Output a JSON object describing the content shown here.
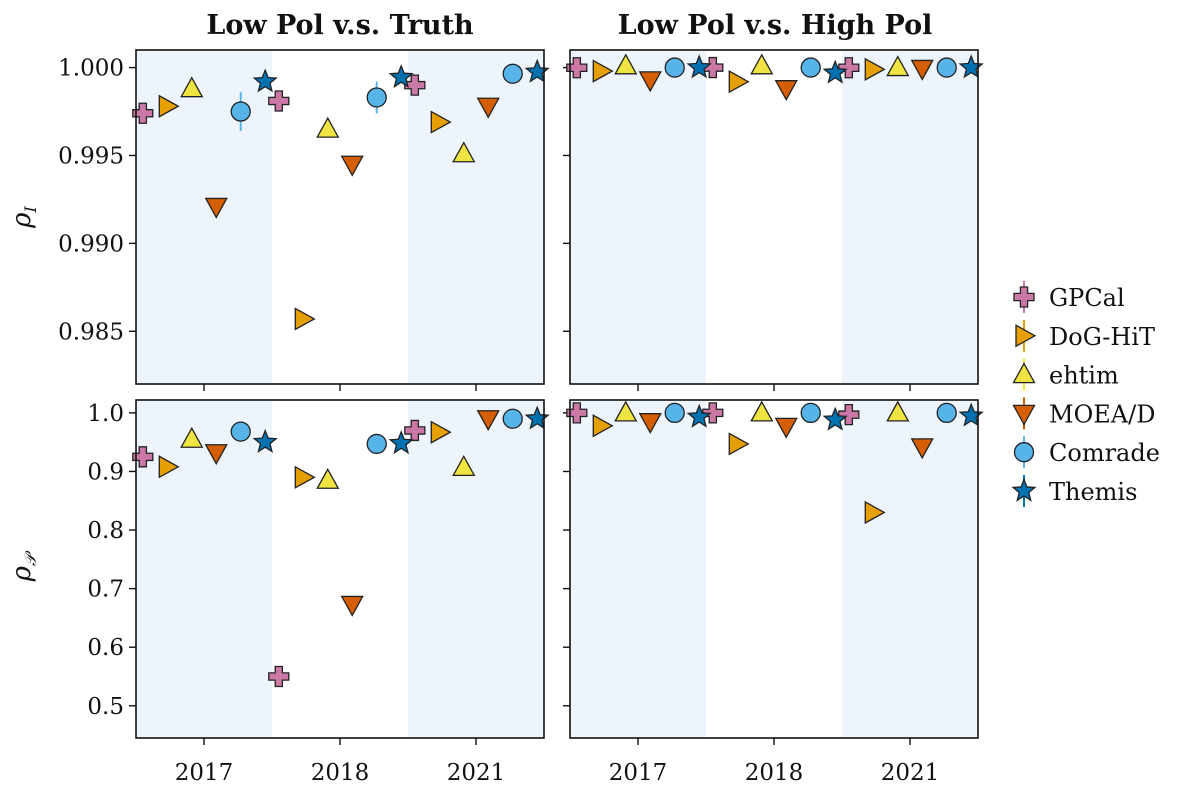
{
  "chart_data": {
    "type": "scatter",
    "layout": "2x2 panel grid",
    "columns": [
      {
        "title": "Low Pol v.s. Truth"
      },
      {
        "title": "Low Pol v.s. High Pol"
      }
    ],
    "rows": [
      {
        "ylabel": "ρ",
        "ylabel_sub": "I",
        "ylim": [
          0.982,
          1.001
        ],
        "yticks": [
          1.0,
          0.995,
          0.99,
          0.985
        ],
        "ytick_labels": [
          "1.000",
          "0.995",
          "0.990",
          "0.985"
        ]
      },
      {
        "ylabel": "ρ",
        "ylabel_sub": "𝒫",
        "ylim": [
          0.445,
          1.022
        ],
        "yticks": [
          1.0,
          0.9,
          0.8,
          0.7,
          0.6,
          0.5
        ],
        "ytick_labels": [
          "1.0",
          "0.9",
          "0.8",
          "0.7",
          "0.6",
          "0.5"
        ]
      }
    ],
    "categories": [
      "2017",
      "2018",
      "2021"
    ],
    "shaded_categories": [
      "2017",
      "2021"
    ],
    "legend": {
      "placement": "right"
    },
    "series": [
      {
        "name": "GPCal",
        "marker": "plus",
        "color": "#cc78a7",
        "values": [
          [
            0.9974,
            0.9981,
            0.999
          ],
          [
            0.99999,
            1.0,
            0.99999
          ],
          [
            0.925,
            0.55,
            0.97
          ],
          [
            1.0,
            1.0,
            0.997
          ]
        ],
        "err": [
          [
            0.0,
            0.0,
            0.0
          ],
          [
            0.0,
            0.0,
            0.0
          ],
          [
            0.0,
            0.0,
            0.0
          ],
          [
            0.0,
            0.0,
            0.0
          ]
        ]
      },
      {
        "name": "DoG-HiT",
        "marker": "triangle-right",
        "color": "#e69f00",
        "values": [
          [
            0.9978,
            0.9857,
            0.9969
          ],
          [
            0.9998,
            0.9992,
            0.9999
          ],
          [
            0.908,
            0.89,
            0.967
          ],
          [
            0.978,
            0.947,
            0.83
          ]
        ],
        "err": [
          [
            0.0,
            0.0,
            0.0
          ],
          [
            0.0,
            0.0,
            0.0
          ],
          [
            0.0,
            0.0,
            0.0
          ],
          [
            0.0,
            0.0,
            0.0
          ]
        ]
      },
      {
        "name": "ehtim",
        "marker": "triangle-up",
        "color": "#f0e442",
        "values": [
          [
            0.9988,
            0.9965,
            0.9951
          ],
          [
            1.0001,
            1.0001,
            1.0
          ],
          [
            0.955,
            0.885,
            0.907
          ],
          [
            1.0,
            1.0,
            1.0
          ]
        ],
        "err": [
          [
            0.0,
            0.0,
            0.0
          ],
          [
            0.0,
            0.0,
            0.0
          ],
          [
            0.0,
            0.0,
            0.0
          ],
          [
            0.0,
            0.0,
            0.0
          ]
        ]
      },
      {
        "name": "MOEA/D",
        "marker": "triangle-down",
        "color": "#d55e00",
        "values": [
          [
            0.9921,
            0.9945,
            0.9978
          ],
          [
            0.9993,
            0.9988,
            0.99995
          ],
          [
            0.932,
            0.673,
            0.99
          ],
          [
            0.985,
            0.977,
            0.942
          ]
        ],
        "err": [
          [
            0.0,
            0.0,
            0.0
          ],
          [
            0.0,
            0.0,
            0.0
          ],
          [
            0.0,
            0.0,
            0.0
          ],
          [
            0.0,
            0.0,
            0.0
          ]
        ]
      },
      {
        "name": "Comrade",
        "marker": "circle",
        "color": "#56b4e9",
        "values": [
          [
            0.9975,
            0.9983,
            0.99965
          ],
          [
            1.0,
            1.0,
            1.0
          ],
          [
            0.968,
            0.947,
            0.99
          ],
          [
            1.0,
            1.0,
            1.0
          ]
        ],
        "err": [
          [
            0.0011,
            0.0009,
            0.0002
          ],
          [
            0.0,
            0.0,
            0.0
          ],
          [
            0.006,
            0.015,
            0.004
          ],
          [
            0.0,
            0.0,
            0.0
          ]
        ]
      },
      {
        "name": "Themis",
        "marker": "star",
        "color": "#0072b2",
        "values": [
          [
            0.9992,
            0.99945,
            0.99975
          ],
          [
            1.0,
            0.9997,
            1.0
          ],
          [
            0.95,
            0.948,
            0.99
          ],
          [
            0.993,
            0.988,
            0.995
          ]
        ],
        "err": [
          [
            0.0003,
            0.0003,
            0.0001
          ],
          [
            0.0002,
            0.0002,
            0.0001
          ],
          [
            0.005,
            0.01,
            0.002
          ],
          [
            0.004,
            0.006,
            0.003
          ]
        ]
      }
    ]
  }
}
